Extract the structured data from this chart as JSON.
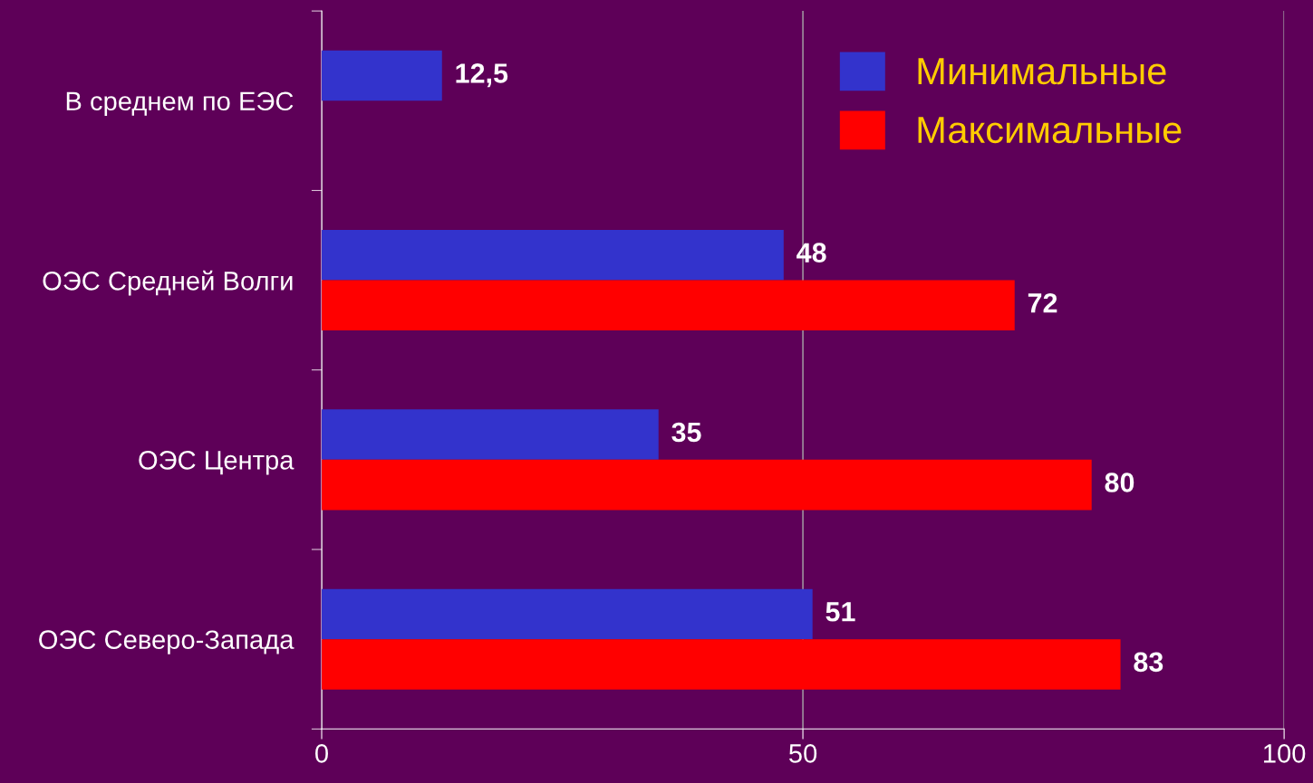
{
  "chart_data": {
    "type": "bar",
    "orientation": "horizontal",
    "categories": [
      "В среднем по ЕЭС",
      "ОЭС Средней Волги",
      "ОЭС Центра",
      "ОЭС Северо-Запада"
    ],
    "series": [
      {
        "name": "Минимальные",
        "color": "#3333cc",
        "values": [
          12.5,
          48,
          35,
          51
        ],
        "value_labels": [
          "12,5",
          "48",
          "35",
          "51"
        ]
      },
      {
        "name": "Максимальные",
        "color": "#ff0000",
        "values": [
          null,
          72,
          80,
          83
        ],
        "value_labels": [
          null,
          "72",
          "80",
          "83"
        ]
      }
    ],
    "xlim": [
      0,
      100
    ],
    "xticks": [
      0,
      50,
      100
    ],
    "grid": "x",
    "legend": "top right"
  }
}
